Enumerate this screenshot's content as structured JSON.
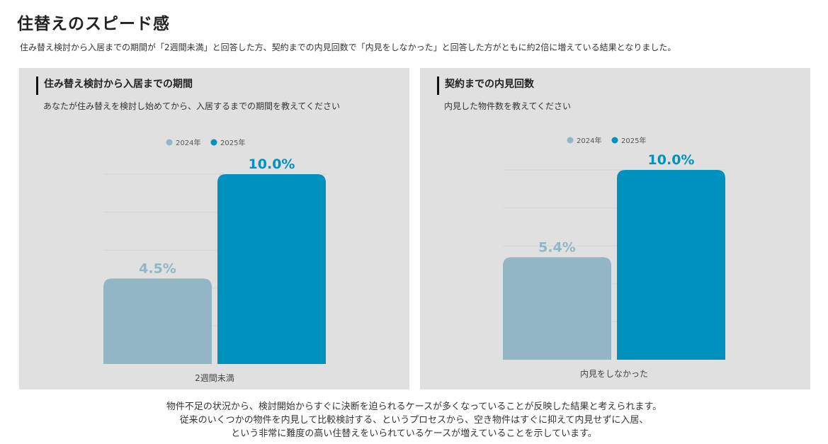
{
  "title": "住替えのスピード感",
  "lead": "住み替え検討から入居までの期間が「2週間未満」と回答した方、契約までの内見回数で「内見をしなかった」と回答した方がともに約2倍に増えている結果となりました。",
  "colors": {
    "y2024": "#92b6c4",
    "y2025": "#0092bf"
  },
  "chart_data": [
    {
      "type": "bar",
      "title": "住み替え検討から入居までの期間",
      "subtitle": "あなたが住み替えを検討し始めてから、入居するまでの期間を教えてください",
      "categories": [
        "2週間未満"
      ],
      "legend": [
        "2024年",
        "2025年"
      ],
      "series": [
        {
          "name": "2024年",
          "values": [
            4.5
          ],
          "label": "4.5%"
        },
        {
          "name": "2025年",
          "values": [
            10.0
          ],
          "label": "10.0%"
        }
      ],
      "ylim": [
        0,
        10
      ],
      "grid": true
    },
    {
      "type": "bar",
      "title": "契約までの内見回数",
      "subtitle": "内見した物件数を教えてください",
      "categories": [
        "内見をしなかった"
      ],
      "legend": [
        "2024年",
        "2025年"
      ],
      "series": [
        {
          "name": "2024年",
          "values": [
            5.4
          ],
          "label": "5.4%"
        },
        {
          "name": "2025年",
          "values": [
            10.0
          ],
          "label": "10.0%"
        }
      ],
      "ylim": [
        0,
        10
      ],
      "grid": true
    }
  ],
  "footer": [
    "物件不足の状況から、検討開始からすぐに決断を迫られるケースが多くなっていることが反映した結果と考えられます。",
    "従来のいくつかの物件を内見して比較検討する、というプロセスから、空き物件はすぐに抑えて内見せずに入居、",
    "という非常に難度の高い住替えをいられているケースが増えていることを示しています。"
  ]
}
